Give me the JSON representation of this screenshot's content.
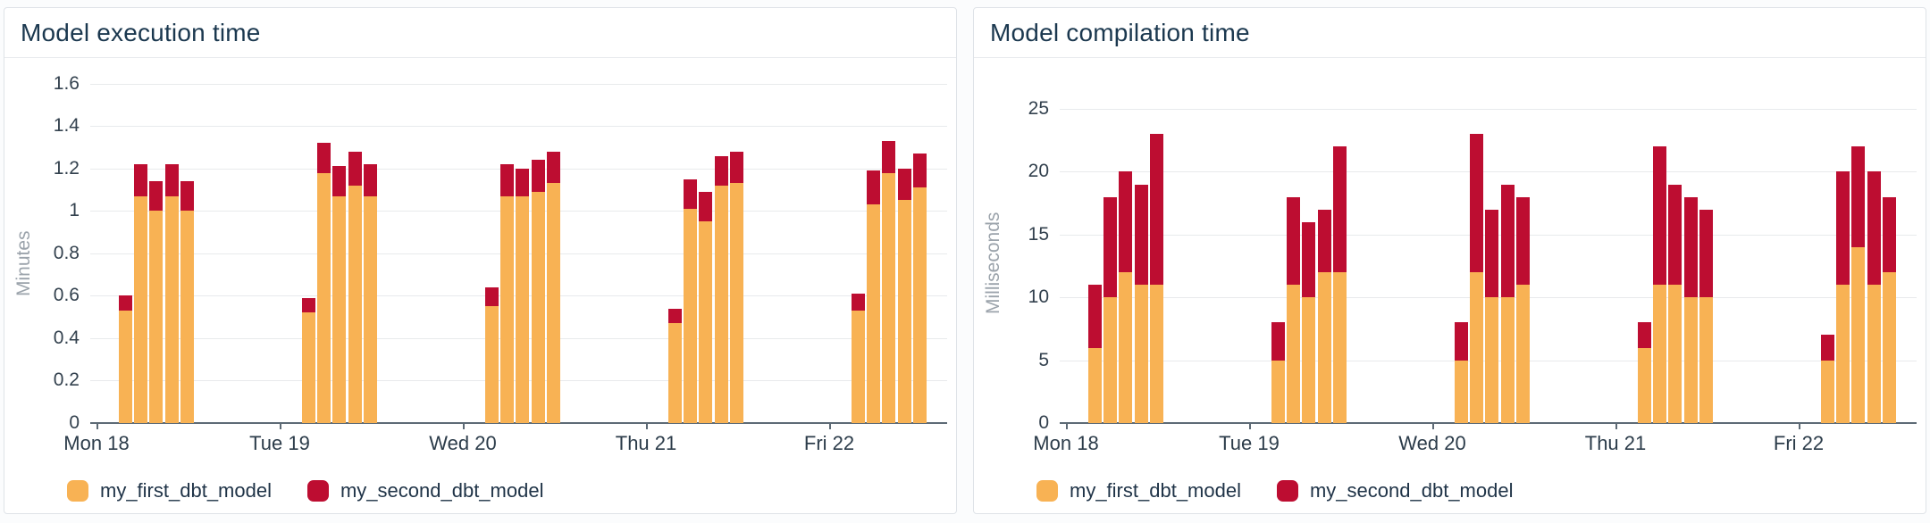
{
  "chart_data": [
    {
      "type": "bar",
      "stacked": true,
      "title": "Model execution time",
      "ylabel": "Minutes",
      "xlabel": "",
      "ylim": [
        0,
        1.6
      ],
      "ylim_render": [
        0,
        1.7
      ],
      "y_tick_labels": [
        "0",
        "0.2",
        "0.4",
        "0.6",
        "0.8",
        "1",
        "1.2",
        "1.4",
        "1.6"
      ],
      "y_tick_values": [
        0,
        0.2,
        0.4,
        0.6,
        0.8,
        1,
        1.2,
        1.4,
        1.6
      ],
      "grid": true,
      "legend_position": "bottom",
      "categories": [
        "Mon 18",
        "Tue 19",
        "Wed 20",
        "Thu 21",
        "Fri 22"
      ],
      "bars_per_category": 5,
      "series": [
        {
          "name": "my_first_dbt_model",
          "color": "#F8B254",
          "values": [
            [
              0.53,
              1.07,
              1.0,
              1.07,
              1.0
            ],
            [
              0.52,
              1.18,
              1.07,
              1.12,
              1.07
            ],
            [
              0.55,
              1.07,
              1.07,
              1.09,
              1.13
            ],
            [
              0.47,
              1.01,
              0.95,
              1.12,
              1.13
            ],
            [
              0.53,
              1.03,
              1.18,
              1.05,
              1.11
            ]
          ]
        },
        {
          "name": "my_second_dbt_model",
          "color": "#BD0D31",
          "values": [
            [
              0.07,
              0.15,
              0.14,
              0.15,
              0.14
            ],
            [
              0.07,
              0.14,
              0.14,
              0.16,
              0.15
            ],
            [
              0.09,
              0.15,
              0.13,
              0.15,
              0.15
            ],
            [
              0.07,
              0.14,
              0.14,
              0.14,
              0.15
            ],
            [
              0.08,
              0.16,
              0.15,
              0.15,
              0.16
            ]
          ]
        }
      ]
    },
    {
      "type": "bar",
      "stacked": true,
      "title": "Model compilation time",
      "ylabel": "Milliseconds",
      "xlabel": "",
      "ylim": [
        0,
        25
      ],
      "ylim_render": [
        0,
        28.7
      ],
      "y_tick_labels": [
        "0",
        "5",
        "10",
        "15",
        "20",
        "25"
      ],
      "y_tick_values": [
        0,
        5,
        10,
        15,
        20,
        25
      ],
      "grid": true,
      "legend_position": "bottom",
      "categories": [
        "Mon 18",
        "Tue 19",
        "Wed 20",
        "Thu 21",
        "Fri 22"
      ],
      "bars_per_category": 5,
      "series": [
        {
          "name": "my_first_dbt_model",
          "color": "#F8B254",
          "values": [
            [
              6,
              10,
              12,
              11,
              11
            ],
            [
              5,
              11,
              10,
              12,
              12
            ],
            [
              5,
              12,
              10,
              10,
              11
            ],
            [
              6,
              11,
              11,
              10,
              10
            ],
            [
              5,
              11,
              14,
              11,
              12
            ]
          ]
        },
        {
          "name": "my_second_dbt_model",
          "color": "#BD0D31",
          "values": [
            [
              5,
              8,
              8,
              8,
              12
            ],
            [
              3,
              7,
              6,
              5,
              10
            ],
            [
              3,
              11,
              7,
              9,
              7
            ],
            [
              2,
              11,
              8,
              8,
              7
            ],
            [
              2,
              9,
              8,
              9,
              6
            ]
          ]
        }
      ]
    }
  ]
}
